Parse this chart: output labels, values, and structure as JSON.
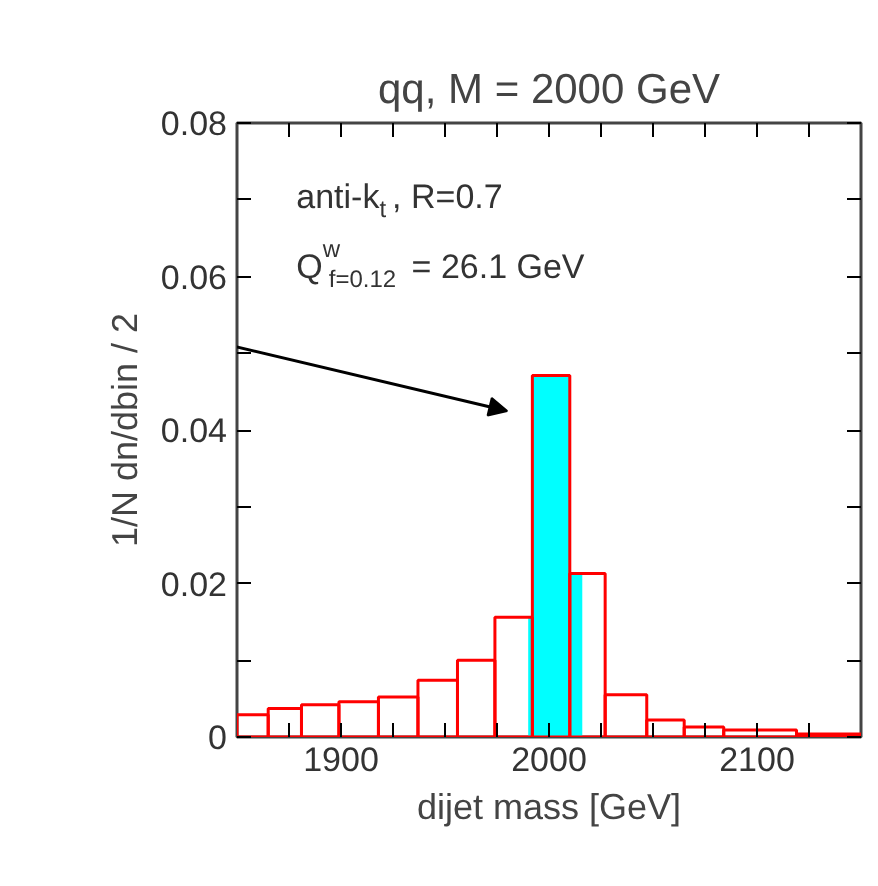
{
  "chart_data": {
    "type": "histogram",
    "title": "qq, M = 2000 GeV",
    "xlabel": "dijet mass [GeV]",
    "ylabel": "1/N dn/dbin / 2",
    "annotations": [
      "anti-k$_{t}$, R=0.7",
      "Q$^{w}$$_{f=0.12}$ = 26.1 GeV"
    ],
    "color": "#ff0000",
    "bins": [
      1850,
      1865,
      1881,
      1899,
      1918,
      1937,
      1956,
      1974,
      1992,
      2010,
      2027,
      2047,
      2065,
      2084,
      2119,
      2150
    ],
    "values": [
      0.0029,
      0.0037,
      0.0042,
      0.0046,
      0.0052,
      0.0074,
      0.01,
      0.0156,
      0.0471,
      0.0213,
      0.0055,
      0.0022,
      0.0013,
      0.0009,
      0.0004
    ],
    "series": [
      {
        "type": "area",
        "color": "#00ffff",
        "x": [
          1990,
          1992,
          1992,
          2010,
          2010,
          2016
        ],
        "values": [
          0.0156,
          0.0156,
          0.0471,
          0.0471,
          0.0213,
          0.0213
        ]
      }
    ],
    "xlim": [
      1850,
      2150
    ],
    "ylim": [
      0,
      0.08
    ],
    "xticks": [
      {
        "value": 1875,
        "label": null
      },
      1900,
      {
        "value": 1925,
        "label": null
      },
      {
        "value": 1950,
        "label": null
      },
      {
        "value": 1975,
        "label": null
      },
      2000,
      {
        "value": 2025,
        "label": null
      },
      {
        "value": 2050,
        "label": null
      },
      {
        "value": 2075,
        "label": null
      },
      2100,
      {
        "value": 2125,
        "label": null
      }
    ],
    "yticks": [
      {
        "value": 0,
        "label": "0"
      },
      {
        "value": 0.01,
        "label": null
      },
      {
        "value": 0.02,
        "label": "0.02"
      },
      {
        "value": 0.03,
        "label": null
      },
      {
        "value": 0.04,
        "label": "0.04"
      },
      {
        "value": 0.05,
        "label": null
      },
      {
        "value": 0.06,
        "label": "0.06"
      },
      {
        "value": 0.07,
        "label": null
      },
      {
        "value": 0.08,
        "label": "0.08"
      }
    ]
  }
}
